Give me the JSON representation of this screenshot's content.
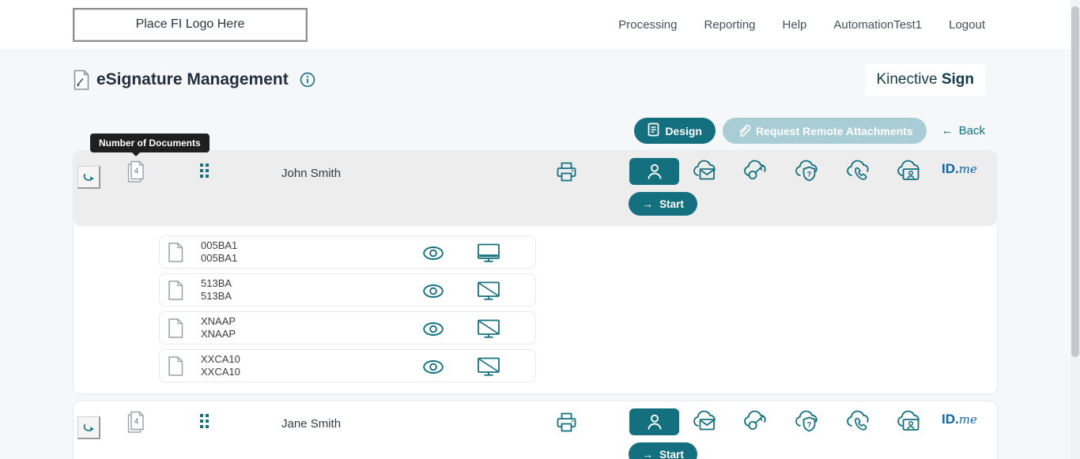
{
  "colors": {
    "accent": "#14707e",
    "accent_disabled": "#a9cdd4",
    "idme_blue": "#0d63a5",
    "tooltip_bg": "#1f1f1f"
  },
  "topbar": {
    "logo_placeholder": "Place FI Logo Here",
    "nav_items": [
      "Processing",
      "Reporting",
      "Help",
      "AutomationTest1",
      "Logout"
    ]
  },
  "page_header": {
    "title": "eSignature Management",
    "brand_regular": "Kinective",
    "brand_bold": "Sign"
  },
  "toolbar": {
    "design_label": "Design",
    "request_remote_label": "Request Remote Attachments",
    "back_arrow": "←",
    "back_label": "Back"
  },
  "tooltip": {
    "text": "Number of Documents"
  },
  "start": {
    "arrow": "→",
    "label": "Start"
  },
  "idme": {
    "bold": "ID.",
    "italic": "me"
  },
  "icons": {
    "shield_glyph": "?"
  },
  "signers": [
    {
      "name": "John Smith",
      "doc_count": "4",
      "highlighted": true,
      "documents": [
        {
          "name": "005BA1",
          "description": "005BA1",
          "screen_share": "on"
        },
        {
          "name": "513BA",
          "description": "513BA",
          "screen_share": "off"
        },
        {
          "name": "XNAAP",
          "description": "XNAAP",
          "screen_share": "off"
        },
        {
          "name": "XXCA10",
          "description": "XXCA10",
          "screen_share": "off"
        }
      ]
    },
    {
      "name": "Jane Smith",
      "doc_count": "4",
      "highlighted": false,
      "documents": []
    }
  ]
}
